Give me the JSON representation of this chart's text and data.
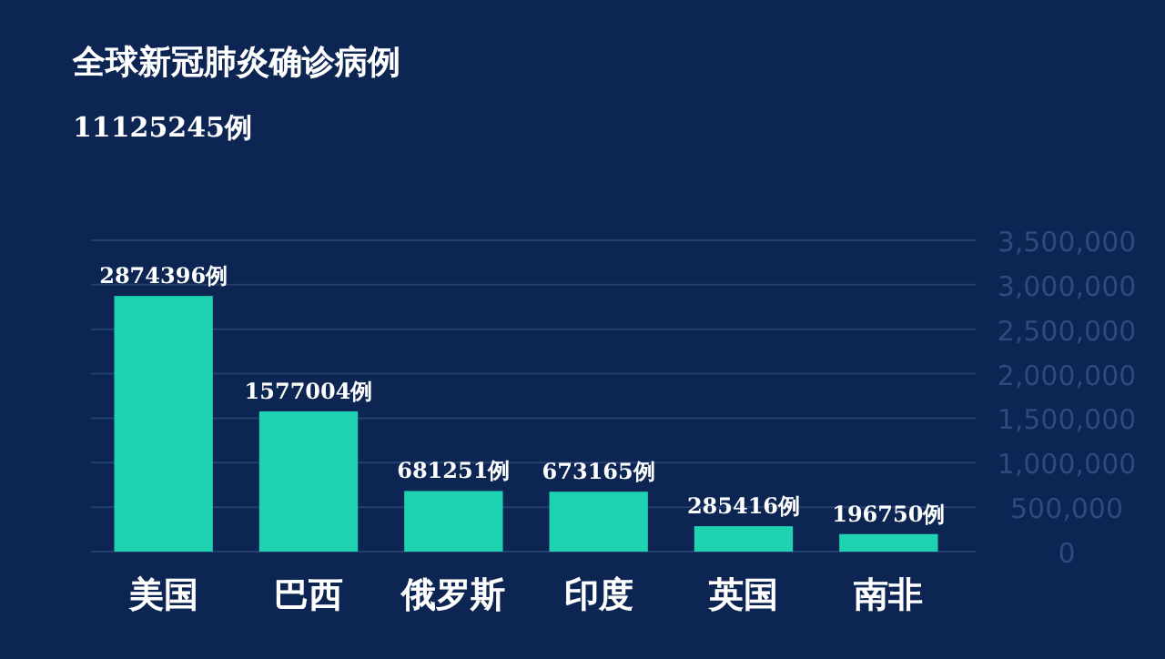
{
  "chart_data": {
    "type": "bar",
    "title": "全球新冠肺炎确诊病例",
    "subtitle": "11125245例",
    "categories": [
      "美国",
      "巴西",
      "俄罗斯",
      "印度",
      "英国",
      "南非"
    ],
    "values": [
      2874396,
      1577004,
      681251,
      673165,
      285416,
      196750
    ],
    "value_labels": [
      "2874396例",
      "1577004例",
      "681251例",
      "673165例",
      "285416例",
      "196750例"
    ],
    "color": "#1fd3b2",
    "ylim": [
      0,
      3500000
    ],
    "yticks": [
      {
        "value": 0,
        "label": "0"
      },
      {
        "value": 500000,
        "label": "500,000"
      },
      {
        "value": 1000000,
        "label": "1,000,000"
      },
      {
        "value": 1500000,
        "label": "1,500,000"
      },
      {
        "value": 2000000,
        "label": "2,000,000"
      },
      {
        "value": 2500000,
        "label": "2,500,000"
      },
      {
        "value": 3000000,
        "label": "3,000,000"
      },
      {
        "value": 3500000,
        "label": "3,500,000"
      }
    ],
    "grid": "y"
  }
}
